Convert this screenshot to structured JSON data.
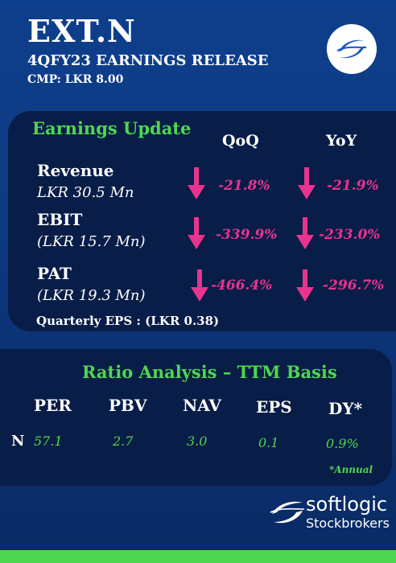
{
  "header": {
    "ticker": "EXT.N",
    "release": "4QFY23 EARNINGS RELEASE",
    "cmp": "CMP: LKR 8.00"
  },
  "earnings": {
    "title": "Earnings Update",
    "col_qoq": "QoQ",
    "col_yoy": "YoY",
    "rows": [
      {
        "label": "Revenue",
        "amount": "LKR 30.5 Mn",
        "qoq": "-21.8%",
        "yoy": "-21.9%"
      },
      {
        "label": "EBIT",
        "amount": "(LKR 15.7 Mn)",
        "qoq": "-339.9%",
        "yoy": "-233.0%"
      },
      {
        "label": "PAT",
        "amount": "(LKR 19.3 Mn)",
        "qoq": "-466.4%",
        "yoy": "-296.7%"
      }
    ],
    "eps": "Quarterly EPS : (LKR 0.38)"
  },
  "ratios": {
    "title": "Ratio Analysis – TTM Basis",
    "row_label": "N",
    "headers": [
      "PER",
      "PBV",
      "NAV",
      "EPS",
      "DY*"
    ],
    "values": [
      "57.1",
      "2.7",
      "3.0",
      "0.1",
      "0.9%"
    ],
    "footnote": "*Annual"
  },
  "brand": {
    "name1": "softlogic",
    "name2": "Stockbrokers"
  },
  "colors": {
    "accent_green": "#4fd651",
    "decline_pink": "#e8338f",
    "panel": "#081d47"
  }
}
